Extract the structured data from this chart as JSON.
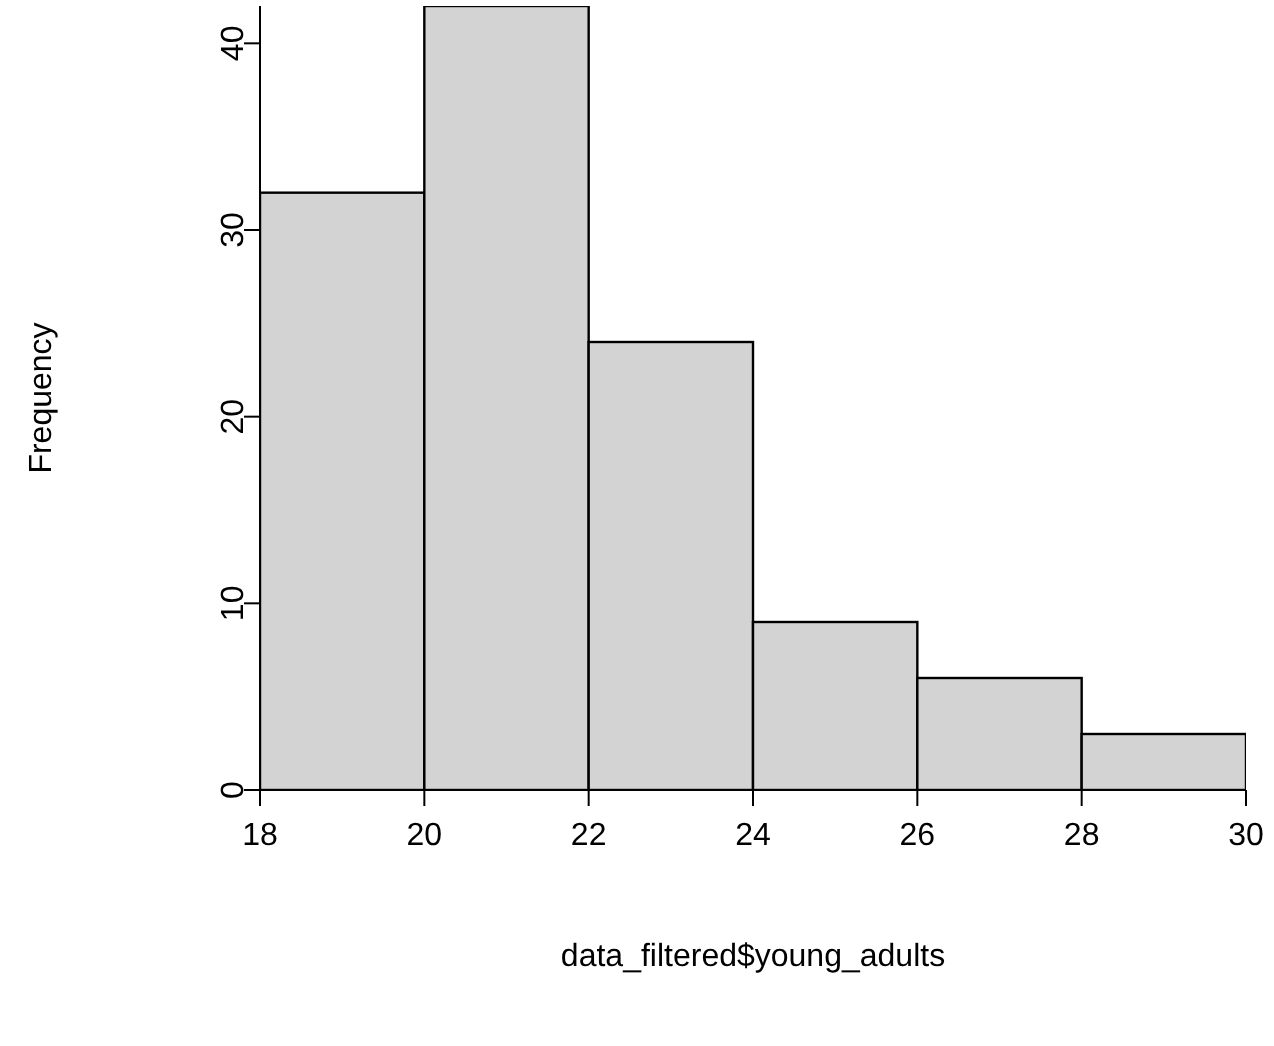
{
  "chart_data": {
    "type": "histogram",
    "xlabel": "data_filtered$young_adults",
    "ylabel": "Frequency",
    "bins": [
      18,
      20,
      22,
      24,
      26,
      28,
      30
    ],
    "values": [
      32,
      42,
      24,
      9,
      6,
      3
    ],
    "color": "#d3d3d3",
    "xlim": [
      18,
      30
    ],
    "xticks": [
      18,
      20,
      22,
      24,
      26,
      28,
      30
    ],
    "ylim": [
      0,
      42
    ],
    "yticks": [
      0,
      10,
      20,
      30,
      40
    ],
    "grid": false
  }
}
